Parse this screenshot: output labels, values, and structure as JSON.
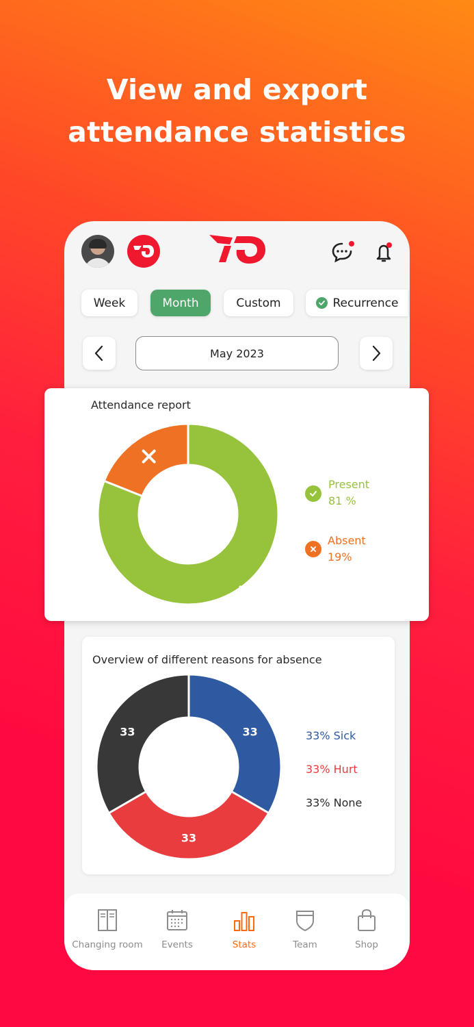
{
  "headline": {
    "line1": "View and export",
    "line2": "attendance statistics"
  },
  "header": {
    "avatar": "user-avatar",
    "club_badge": "club-badge",
    "logo": "app-logo"
  },
  "filters": {
    "week": "Week",
    "month": "Month",
    "custom": "Custom",
    "recurrence": "Recurrence",
    "active": "Month"
  },
  "period": {
    "label": "May 2023"
  },
  "attendance": {
    "title": "Attendance report",
    "present_label": "Present",
    "present_value": "81 %",
    "absent_label": "Absent",
    "absent_value": "19%",
    "colors": {
      "present": "#97c23b",
      "absent": "#ee7124"
    }
  },
  "reasons": {
    "title": "Overview of different reasons for absence",
    "legend": {
      "sick": "33% Sick",
      "hurt": "33% Hurt",
      "none": "33% None"
    },
    "slice_labels": {
      "sick": "33",
      "hurt": "33",
      "none": "33"
    },
    "colors": {
      "sick": "#2f5aa1",
      "hurt": "#e93c3e",
      "none": "#383838"
    }
  },
  "chart_data": [
    {
      "type": "pie",
      "title": "Attendance report",
      "categories": [
        "Present",
        "Absent"
      ],
      "values": [
        81,
        19
      ]
    },
    {
      "type": "pie",
      "title": "Overview of different reasons for absence",
      "categories": [
        "Sick",
        "Hurt",
        "None"
      ],
      "values": [
        33,
        33,
        33
      ]
    }
  ],
  "tabbar": {
    "changing_room": "Changing room",
    "events": "Events",
    "stats": "Stats",
    "team": "Team",
    "shop": "Shop",
    "active": "Stats",
    "accent": "#ff6a10"
  }
}
